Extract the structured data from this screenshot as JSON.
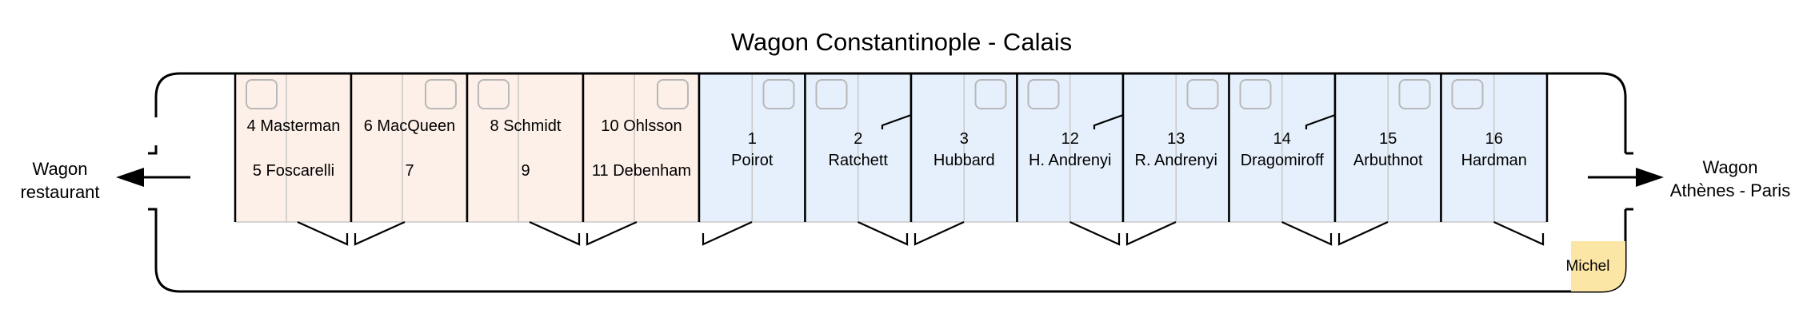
{
  "title": "Wagon Constantinople - Calais",
  "left_destination": {
    "line1": "Wagon",
    "line2": "restaurant"
  },
  "right_destination": {
    "line1": "Wagon",
    "line2": "Athènes - Paris"
  },
  "attendant": "Michel",
  "colors": {
    "second_class_fill": "#fdf0e8",
    "first_class_fill": "#e6f0fc",
    "attendant_fill": "#fbe6a6",
    "outline": "#000000",
    "divider": "#c8c8c8"
  },
  "second_class_cabins": [
    {
      "top": "4 Masterman",
      "bottom": "5 Foscarelli"
    },
    {
      "top": "6 MacQueen",
      "bottom": "7"
    },
    {
      "top": "8 Schmidt",
      "bottom": "9"
    },
    {
      "top": "10 Ohlsson",
      "bottom": "11 Debenham"
    }
  ],
  "first_class_cabins": [
    {
      "number": "1",
      "name": "Poirot"
    },
    {
      "number": "2",
      "name": "Ratchett"
    },
    {
      "number": "3",
      "name": "Hubbard"
    },
    {
      "number": "12",
      "name": "H. Andrenyi"
    },
    {
      "number": "13",
      "name": "R. Andrenyi"
    },
    {
      "number": "14",
      "name": "Dragomiroff"
    },
    {
      "number": "15",
      "name": "Arbuthnot"
    },
    {
      "number": "16",
      "name": "Hardman"
    }
  ]
}
